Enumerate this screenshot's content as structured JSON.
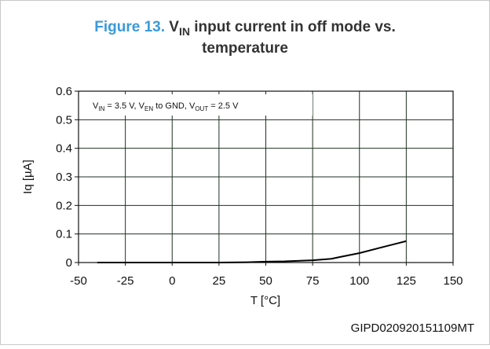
{
  "chart_data": {
    "type": "line",
    "title": {
      "label": "Figure 13.",
      "v": "V",
      "sub": "IN",
      "rest": " input current in off mode vs.",
      "line2": "temperature"
    },
    "annotation": [
      {
        "text": "V"
      },
      {
        "text": "IN",
        "sub": true
      },
      {
        "text": " = 3.5 V, V"
      },
      {
        "text": "EN",
        "sub": true
      },
      {
        "text": " to GND, V"
      },
      {
        "text": "OUT",
        "sub": true
      },
      {
        "text": " = 2.5 V"
      }
    ],
    "xlabel": "T [°C]",
    "ylabel": "Iq [µA]",
    "footer": "GIPD020920151109MT",
    "x": [
      -40,
      -25,
      0,
      25,
      40,
      50,
      60,
      75,
      85,
      90,
      100,
      110,
      125
    ],
    "values": [
      0,
      0,
      0,
      0,
      0.001,
      0.003,
      0.004,
      0.008,
      0.013,
      0.02,
      0.033,
      0.05,
      0.075
    ],
    "color": "#000000",
    "xlim": [
      -50,
      150
    ],
    "xticks": [
      -50,
      -25,
      0,
      25,
      50,
      75,
      100,
      125,
      150
    ],
    "ylim": [
      0,
      0.6
    ],
    "yticks": [
      0,
      0.1,
      0.2,
      0.3,
      0.4,
      0.5,
      0.6
    ],
    "grid": true
  }
}
